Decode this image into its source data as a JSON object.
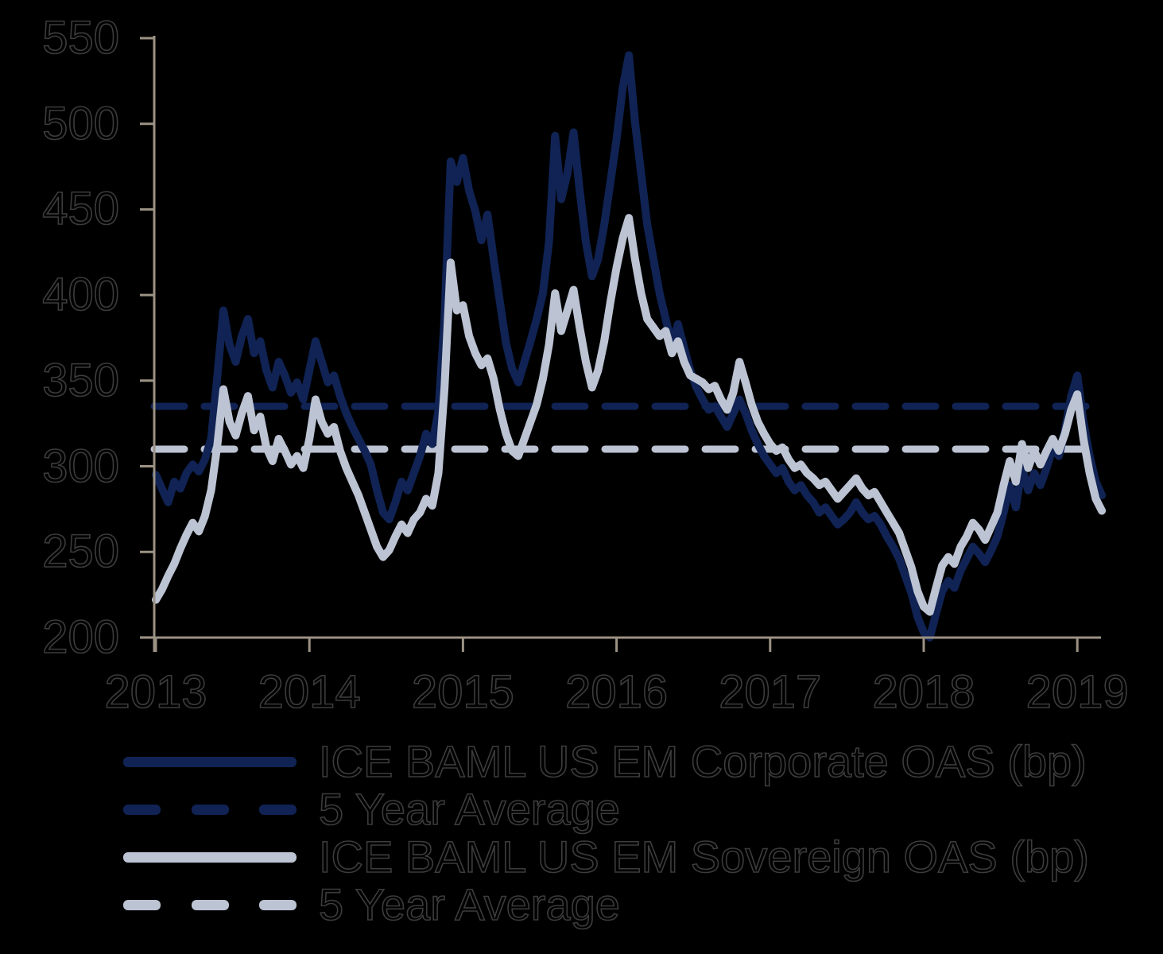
{
  "colors": {
    "background": "#000000",
    "text": "#000000",
    "axis": "#9c9284",
    "navy": "#102354",
    "light_blue": "#bcc3d3"
  },
  "chart_data": {
    "type": "line",
    "title": "",
    "xlabel": "",
    "ylabel": "",
    "grid": false,
    "legend_position": "bottom-left",
    "y_axis": {
      "min": 200,
      "max": 550,
      "tick_step": 50,
      "ticks": [
        550,
        500,
        450,
        400,
        350,
        300,
        250,
        200
      ]
    },
    "x_axis": {
      "ticks": [
        2013,
        2014,
        2015,
        2016,
        2017,
        2018,
        2019
      ]
    },
    "x_years": [
      2013,
      2013.04,
      2013.08,
      2013.12,
      2013.16,
      2013.2,
      2013.24,
      2013.28,
      2013.32,
      2013.36,
      2013.4,
      2013.44,
      2013.48,
      2013.52,
      2013.56,
      2013.6,
      2013.64,
      2013.68,
      2013.72,
      2013.76,
      2013.8,
      2013.84,
      2013.88,
      2013.92,
      2013.96,
      2014,
      2014.04,
      2014.08,
      2014.12,
      2014.16,
      2014.2,
      2014.24,
      2014.28,
      2014.32,
      2014.36,
      2014.4,
      2014.44,
      2014.48,
      2014.52,
      2014.56,
      2014.6,
      2014.64,
      2014.68,
      2014.72,
      2014.76,
      2014.8,
      2014.84,
      2014.88,
      2014.92,
      2014.96,
      2015,
      2015.04,
      2015.08,
      2015.12,
      2015.16,
      2015.2,
      2015.24,
      2015.28,
      2015.32,
      2015.36,
      2015.4,
      2015.44,
      2015.48,
      2015.52,
      2015.56,
      2015.6,
      2015.64,
      2015.68,
      2015.72,
      2015.76,
      2015.8,
      2015.84,
      2015.88,
      2015.92,
      2015.96,
      2016,
      2016.04,
      2016.08,
      2016.12,
      2016.16,
      2016.2,
      2016.24,
      2016.28,
      2016.32,
      2016.36,
      2016.4,
      2016.44,
      2016.48,
      2016.52,
      2016.56,
      2016.6,
      2016.64,
      2016.68,
      2016.72,
      2016.76,
      2016.8,
      2016.84,
      2016.88,
      2016.92,
      2016.96,
      2017,
      2017.04,
      2017.08,
      2017.12,
      2017.16,
      2017.2,
      2017.24,
      2017.28,
      2017.32,
      2017.36,
      2017.4,
      2017.44,
      2017.48,
      2017.52,
      2017.56,
      2017.6,
      2017.64,
      2017.68,
      2017.72,
      2017.76,
      2017.8,
      2017.84,
      2017.88,
      2017.92,
      2017.96,
      2018,
      2018.04,
      2018.08,
      2018.12,
      2018.16,
      2018.2,
      2018.24,
      2018.28,
      2018.32,
      2018.36,
      2018.4,
      2018.44,
      2018.48,
      2018.52,
      2018.56,
      2018.6,
      2018.64,
      2018.68,
      2018.72,
      2018.76,
      2018.8,
      2018.84,
      2018.88,
      2018.92,
      2018.96,
      2019,
      2019.04,
      2019.08,
      2019.12,
      2019.16
    ],
    "series": [
      {
        "name": "ICE BAML US EM Corporate OAS (bp)",
        "style": "solid",
        "color_key": "navy",
        "values": [
          295,
          287,
          279,
          291,
          287,
          296,
          301,
          297,
          304,
          316,
          352,
          391,
          371,
          361,
          376,
          386,
          366,
          373,
          356,
          346,
          361,
          353,
          343,
          349,
          339,
          356,
          373,
          361,
          349,
          353,
          341,
          331,
          323,
          316,
          309,
          301,
          286,
          273,
          269,
          279,
          291,
          286,
          296,
          306,
          319,
          313,
          332,
          386,
          478,
          466,
          480,
          461,
          449,
          432,
          447,
          421,
          396,
          372,
          357,
          349,
          361,
          373,
          386,
          401,
          431,
          493,
          456,
          471,
          495,
          461,
          431,
          411,
          421,
          441,
          466,
          491,
          521,
          540,
          501,
          471,
          441,
          421,
          401,
          386,
          371,
          383,
          369,
          356,
          346,
          339,
          333,
          335,
          329,
          323,
          331,
          339,
          331,
          321,
          313,
          306,
          301,
          296,
          299,
          291,
          286,
          289,
          283,
          279,
          273,
          276,
          271,
          266,
          269,
          273,
          279,
          273,
          269,
          271,
          266,
          259,
          253,
          246,
          236,
          226,
          212,
          203,
          200,
          214,
          227,
          233,
          229,
          239,
          246,
          253,
          249,
          244,
          251,
          259,
          273,
          289,
          276,
          299,
          286,
          296,
          289,
          299,
          311,
          306,
          321,
          341,
          353,
          326,
          306,
          291,
          283
        ]
      },
      {
        "name": "5 Year Average",
        "style": "dashed",
        "color_key": "navy",
        "value": 335
      },
      {
        "name": "ICE BAML US EM Sovereign OAS (bp)",
        "style": "solid",
        "color_key": "light_blue",
        "values": [
          222,
          228,
          236,
          243,
          252,
          260,
          267,
          262,
          271,
          286,
          312,
          345,
          326,
          318,
          331,
          341,
          321,
          329,
          311,
          303,
          316,
          309,
          301,
          306,
          299,
          316,
          339,
          326,
          319,
          323,
          309,
          299,
          291,
          283,
          273,
          263,
          253,
          247,
          251,
          259,
          266,
          261,
          269,
          273,
          281,
          277,
          296,
          346,
          419,
          391,
          394,
          376,
          366,
          359,
          363,
          351,
          333,
          319,
          309,
          306,
          316,
          326,
          336,
          351,
          371,
          401,
          379,
          391,
          403,
          381,
          361,
          346,
          356,
          373,
          396,
          416,
          433,
          445,
          421,
          401,
          386,
          381,
          376,
          379,
          366,
          373,
          361,
          353,
          351,
          349,
          345,
          347,
          339,
          333,
          343,
          361,
          349,
          336,
          326,
          319,
          313,
          309,
          311,
          304,
          299,
          301,
          296,
          293,
          289,
          291,
          286,
          281,
          285,
          289,
          293,
          287,
          283,
          285,
          279,
          273,
          267,
          261,
          251,
          241,
          227,
          218,
          215,
          229,
          242,
          247,
          243,
          253,
          259,
          267,
          263,
          257,
          265,
          273,
          289,
          303,
          291,
          313,
          299,
          309,
          301,
          309,
          316,
          309,
          319,
          333,
          342,
          316,
          296,
          281,
          274
        ]
      },
      {
        "name": "5 Year Average",
        "style": "dashed",
        "color_key": "light_blue",
        "value": 310
      }
    ]
  }
}
